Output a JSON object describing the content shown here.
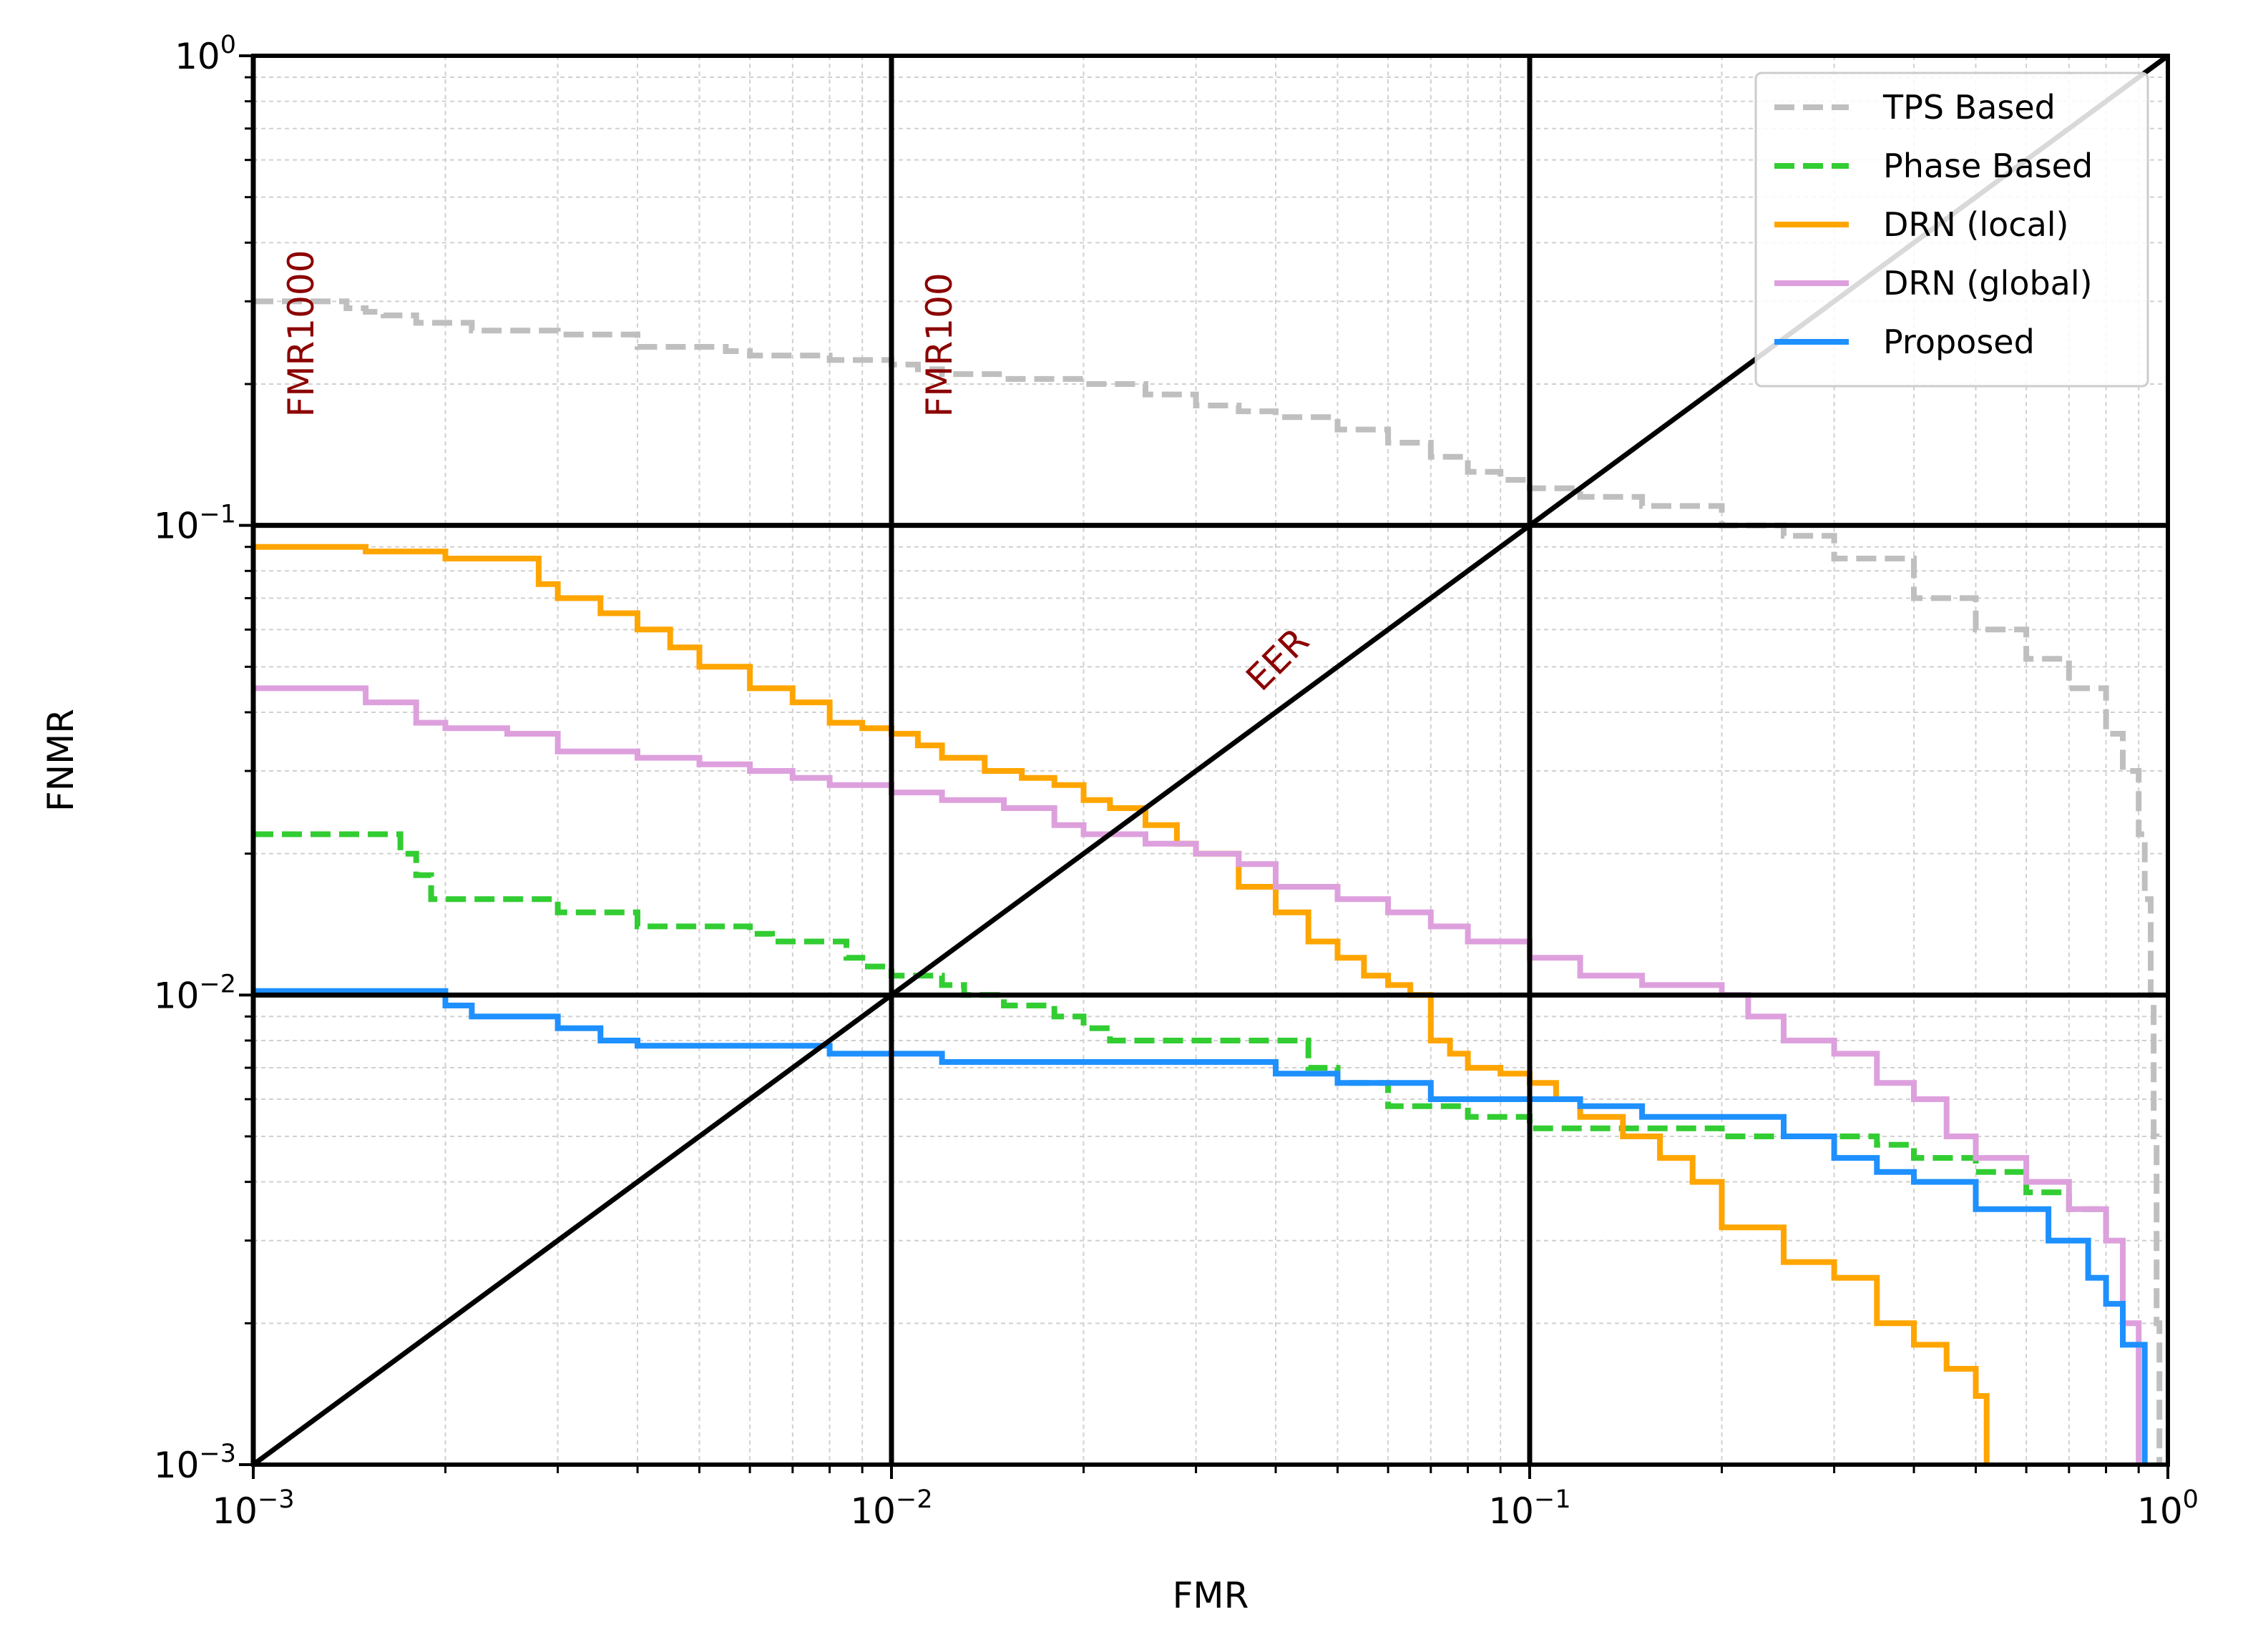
{
  "chart_data": {
    "type": "line",
    "xlabel": "FMR",
    "ylabel": "FNMR",
    "xscale": "log",
    "yscale": "log",
    "xlim": [
      0.001,
      1
    ],
    "ylim": [
      0.001,
      1
    ],
    "grid": true,
    "legend_position": "top-right",
    "x_ticks": [
      {
        "base": "10",
        "exp": "−3",
        "value": 0.001
      },
      {
        "base": "10",
        "exp": "−2",
        "value": 0.01
      },
      {
        "base": "10",
        "exp": "−1",
        "value": 0.1
      },
      {
        "base": "10",
        "exp": "0",
        "value": 1
      }
    ],
    "y_ticks": [
      {
        "base": "10",
        "exp": "−3",
        "value": 0.001
      },
      {
        "base": "10",
        "exp": "−2",
        "value": 0.01
      },
      {
        "base": "10",
        "exp": "−1",
        "value": 0.1
      },
      {
        "base": "10",
        "exp": "0",
        "value": 1
      }
    ],
    "reference_lines": {
      "vertical": [
        0.001,
        0.01,
        0.1
      ],
      "horizontal": [
        0.01,
        0.1
      ],
      "diagonal": [
        [
          0.001,
          0.001
        ],
        [
          1,
          1
        ]
      ]
    },
    "annotations": [
      {
        "text": "FMR1000",
        "x": 0.00112,
        "y": 0.17,
        "rotation": -90
      },
      {
        "text": "FMR100",
        "x": 0.0112,
        "y": 0.17,
        "rotation": -90
      },
      {
        "text": "EER",
        "x": 0.038,
        "y": 0.044,
        "rotation": -45
      }
    ],
    "series": [
      {
        "name": "TPS Based",
        "color": "#bfbfbf",
        "dash": "dashed",
        "x": [
          0.001,
          0.0014,
          0.0015,
          0.0016,
          0.0018,
          0.002,
          0.0022,
          0.0028,
          0.003,
          0.004,
          0.0055,
          0.006,
          0.008,
          0.01,
          0.011,
          0.012,
          0.015,
          0.02,
          0.025,
          0.03,
          0.035,
          0.04,
          0.05,
          0.06,
          0.07,
          0.08,
          0.09,
          0.1,
          0.12,
          0.15,
          0.2,
          0.25,
          0.3,
          0.4,
          0.5,
          0.6,
          0.7,
          0.8,
          0.85,
          0.9,
          0.92,
          0.94,
          0.95,
          0.96,
          0.97
        ],
        "y": [
          0.3,
          0.29,
          0.285,
          0.28,
          0.27,
          0.27,
          0.26,
          0.26,
          0.255,
          0.24,
          0.235,
          0.23,
          0.225,
          0.22,
          0.215,
          0.21,
          0.205,
          0.2,
          0.19,
          0.18,
          0.175,
          0.17,
          0.16,
          0.15,
          0.14,
          0.13,
          0.125,
          0.12,
          0.115,
          0.11,
          0.1,
          0.095,
          0.085,
          0.07,
          0.06,
          0.052,
          0.045,
          0.036,
          0.03,
          0.022,
          0.016,
          0.01,
          0.005,
          0.002,
          0.001
        ]
      },
      {
        "name": "Phase Based",
        "color": "#32cd32",
        "dash": "dashed",
        "x": [
          0.001,
          0.0012,
          0.0014,
          0.0016,
          0.0017,
          0.0018,
          0.0019,
          0.002,
          0.0025,
          0.0029,
          0.003,
          0.0035,
          0.004,
          0.005,
          0.006,
          0.0065,
          0.007,
          0.0075,
          0.008,
          0.0085,
          0.009,
          0.01,
          0.011,
          0.012,
          0.013,
          0.015,
          0.016,
          0.018,
          0.02,
          0.022,
          0.025,
          0.03,
          0.04,
          0.045,
          0.05,
          0.06,
          0.07,
          0.08,
          0.1,
          0.15,
          0.2,
          0.25,
          0.3,
          0.35,
          0.4,
          0.45,
          0.5,
          0.6,
          0.7,
          0.8
        ],
        "y": [
          0.022,
          0.022,
          0.022,
          0.022,
          0.02,
          0.018,
          0.016,
          0.016,
          0.016,
          0.016,
          0.015,
          0.015,
          0.014,
          0.014,
          0.0135,
          0.013,
          0.013,
          0.013,
          0.013,
          0.012,
          0.0115,
          0.011,
          0.011,
          0.0105,
          0.01,
          0.0095,
          0.0095,
          0.009,
          0.0085,
          0.008,
          0.008,
          0.008,
          0.008,
          0.007,
          0.0065,
          0.0058,
          0.0058,
          0.0055,
          0.0052,
          0.0052,
          0.005,
          0.005,
          0.005,
          0.0048,
          0.0045,
          0.0045,
          0.0042,
          0.0038,
          0.0035,
          0.003
        ]
      },
      {
        "name": "DRN (local)",
        "color": "#ffa500",
        "dash": "solid",
        "x": [
          0.001,
          0.0015,
          0.002,
          0.0025,
          0.0028,
          0.003,
          0.0035,
          0.004,
          0.0045,
          0.005,
          0.006,
          0.007,
          0.008,
          0.009,
          0.01,
          0.011,
          0.012,
          0.014,
          0.016,
          0.018,
          0.02,
          0.022,
          0.025,
          0.028,
          0.03,
          0.035,
          0.04,
          0.045,
          0.05,
          0.055,
          0.06,
          0.065,
          0.07,
          0.075,
          0.08,
          0.09,
          0.1,
          0.11,
          0.12,
          0.14,
          0.16,
          0.18,
          0.2,
          0.25,
          0.3,
          0.35,
          0.4,
          0.45,
          0.5,
          0.52
        ],
        "y": [
          0.09,
          0.088,
          0.085,
          0.085,
          0.075,
          0.07,
          0.065,
          0.06,
          0.055,
          0.05,
          0.045,
          0.042,
          0.038,
          0.037,
          0.036,
          0.034,
          0.032,
          0.03,
          0.029,
          0.028,
          0.026,
          0.025,
          0.023,
          0.021,
          0.02,
          0.017,
          0.015,
          0.013,
          0.012,
          0.011,
          0.0105,
          0.01,
          0.008,
          0.0075,
          0.007,
          0.0068,
          0.0065,
          0.006,
          0.0055,
          0.005,
          0.0045,
          0.004,
          0.0032,
          0.0027,
          0.0025,
          0.002,
          0.0018,
          0.0016,
          0.0014,
          0.001
        ]
      },
      {
        "name": "DRN (global)",
        "color": "#dda0dd",
        "dash": "solid",
        "x": [
          0.001,
          0.0012,
          0.0015,
          0.0018,
          0.002,
          0.0025,
          0.003,
          0.004,
          0.005,
          0.006,
          0.007,
          0.008,
          0.01,
          0.012,
          0.015,
          0.018,
          0.02,
          0.025,
          0.03,
          0.035,
          0.04,
          0.05,
          0.06,
          0.07,
          0.08,
          0.1,
          0.12,
          0.15,
          0.18,
          0.2,
          0.22,
          0.25,
          0.3,
          0.35,
          0.4,
          0.45,
          0.5,
          0.6,
          0.7,
          0.8,
          0.85,
          0.9
        ],
        "y": [
          0.045,
          0.045,
          0.042,
          0.038,
          0.037,
          0.036,
          0.033,
          0.032,
          0.031,
          0.03,
          0.029,
          0.028,
          0.027,
          0.026,
          0.025,
          0.023,
          0.022,
          0.021,
          0.02,
          0.019,
          0.017,
          0.016,
          0.015,
          0.014,
          0.013,
          0.012,
          0.011,
          0.0105,
          0.0105,
          0.01,
          0.009,
          0.008,
          0.0075,
          0.0065,
          0.006,
          0.005,
          0.0045,
          0.004,
          0.0035,
          0.003,
          0.002,
          0.001
        ]
      },
      {
        "name": "Proposed",
        "color": "#1e90ff",
        "dash": "solid",
        "x": [
          0.001,
          0.0015,
          0.002,
          0.0022,
          0.0025,
          0.003,
          0.0035,
          0.004,
          0.005,
          0.006,
          0.007,
          0.008,
          0.01,
          0.012,
          0.015,
          0.02,
          0.025,
          0.03,
          0.04,
          0.045,
          0.05,
          0.06,
          0.07,
          0.08,
          0.1,
          0.12,
          0.15,
          0.2,
          0.25,
          0.3,
          0.35,
          0.4,
          0.5,
          0.6,
          0.65,
          0.7,
          0.75,
          0.8,
          0.85,
          0.9,
          0.92
        ],
        "y": [
          0.0102,
          0.0102,
          0.0095,
          0.009,
          0.009,
          0.0085,
          0.008,
          0.0078,
          0.0078,
          0.0078,
          0.0078,
          0.0075,
          0.0075,
          0.0072,
          0.0072,
          0.0072,
          0.0072,
          0.0072,
          0.0068,
          0.0068,
          0.0065,
          0.0065,
          0.006,
          0.006,
          0.006,
          0.0058,
          0.0055,
          0.0055,
          0.005,
          0.0045,
          0.0042,
          0.004,
          0.0035,
          0.0035,
          0.003,
          0.003,
          0.0025,
          0.0022,
          0.0018,
          0.0018,
          0.001
        ]
      }
    ]
  }
}
